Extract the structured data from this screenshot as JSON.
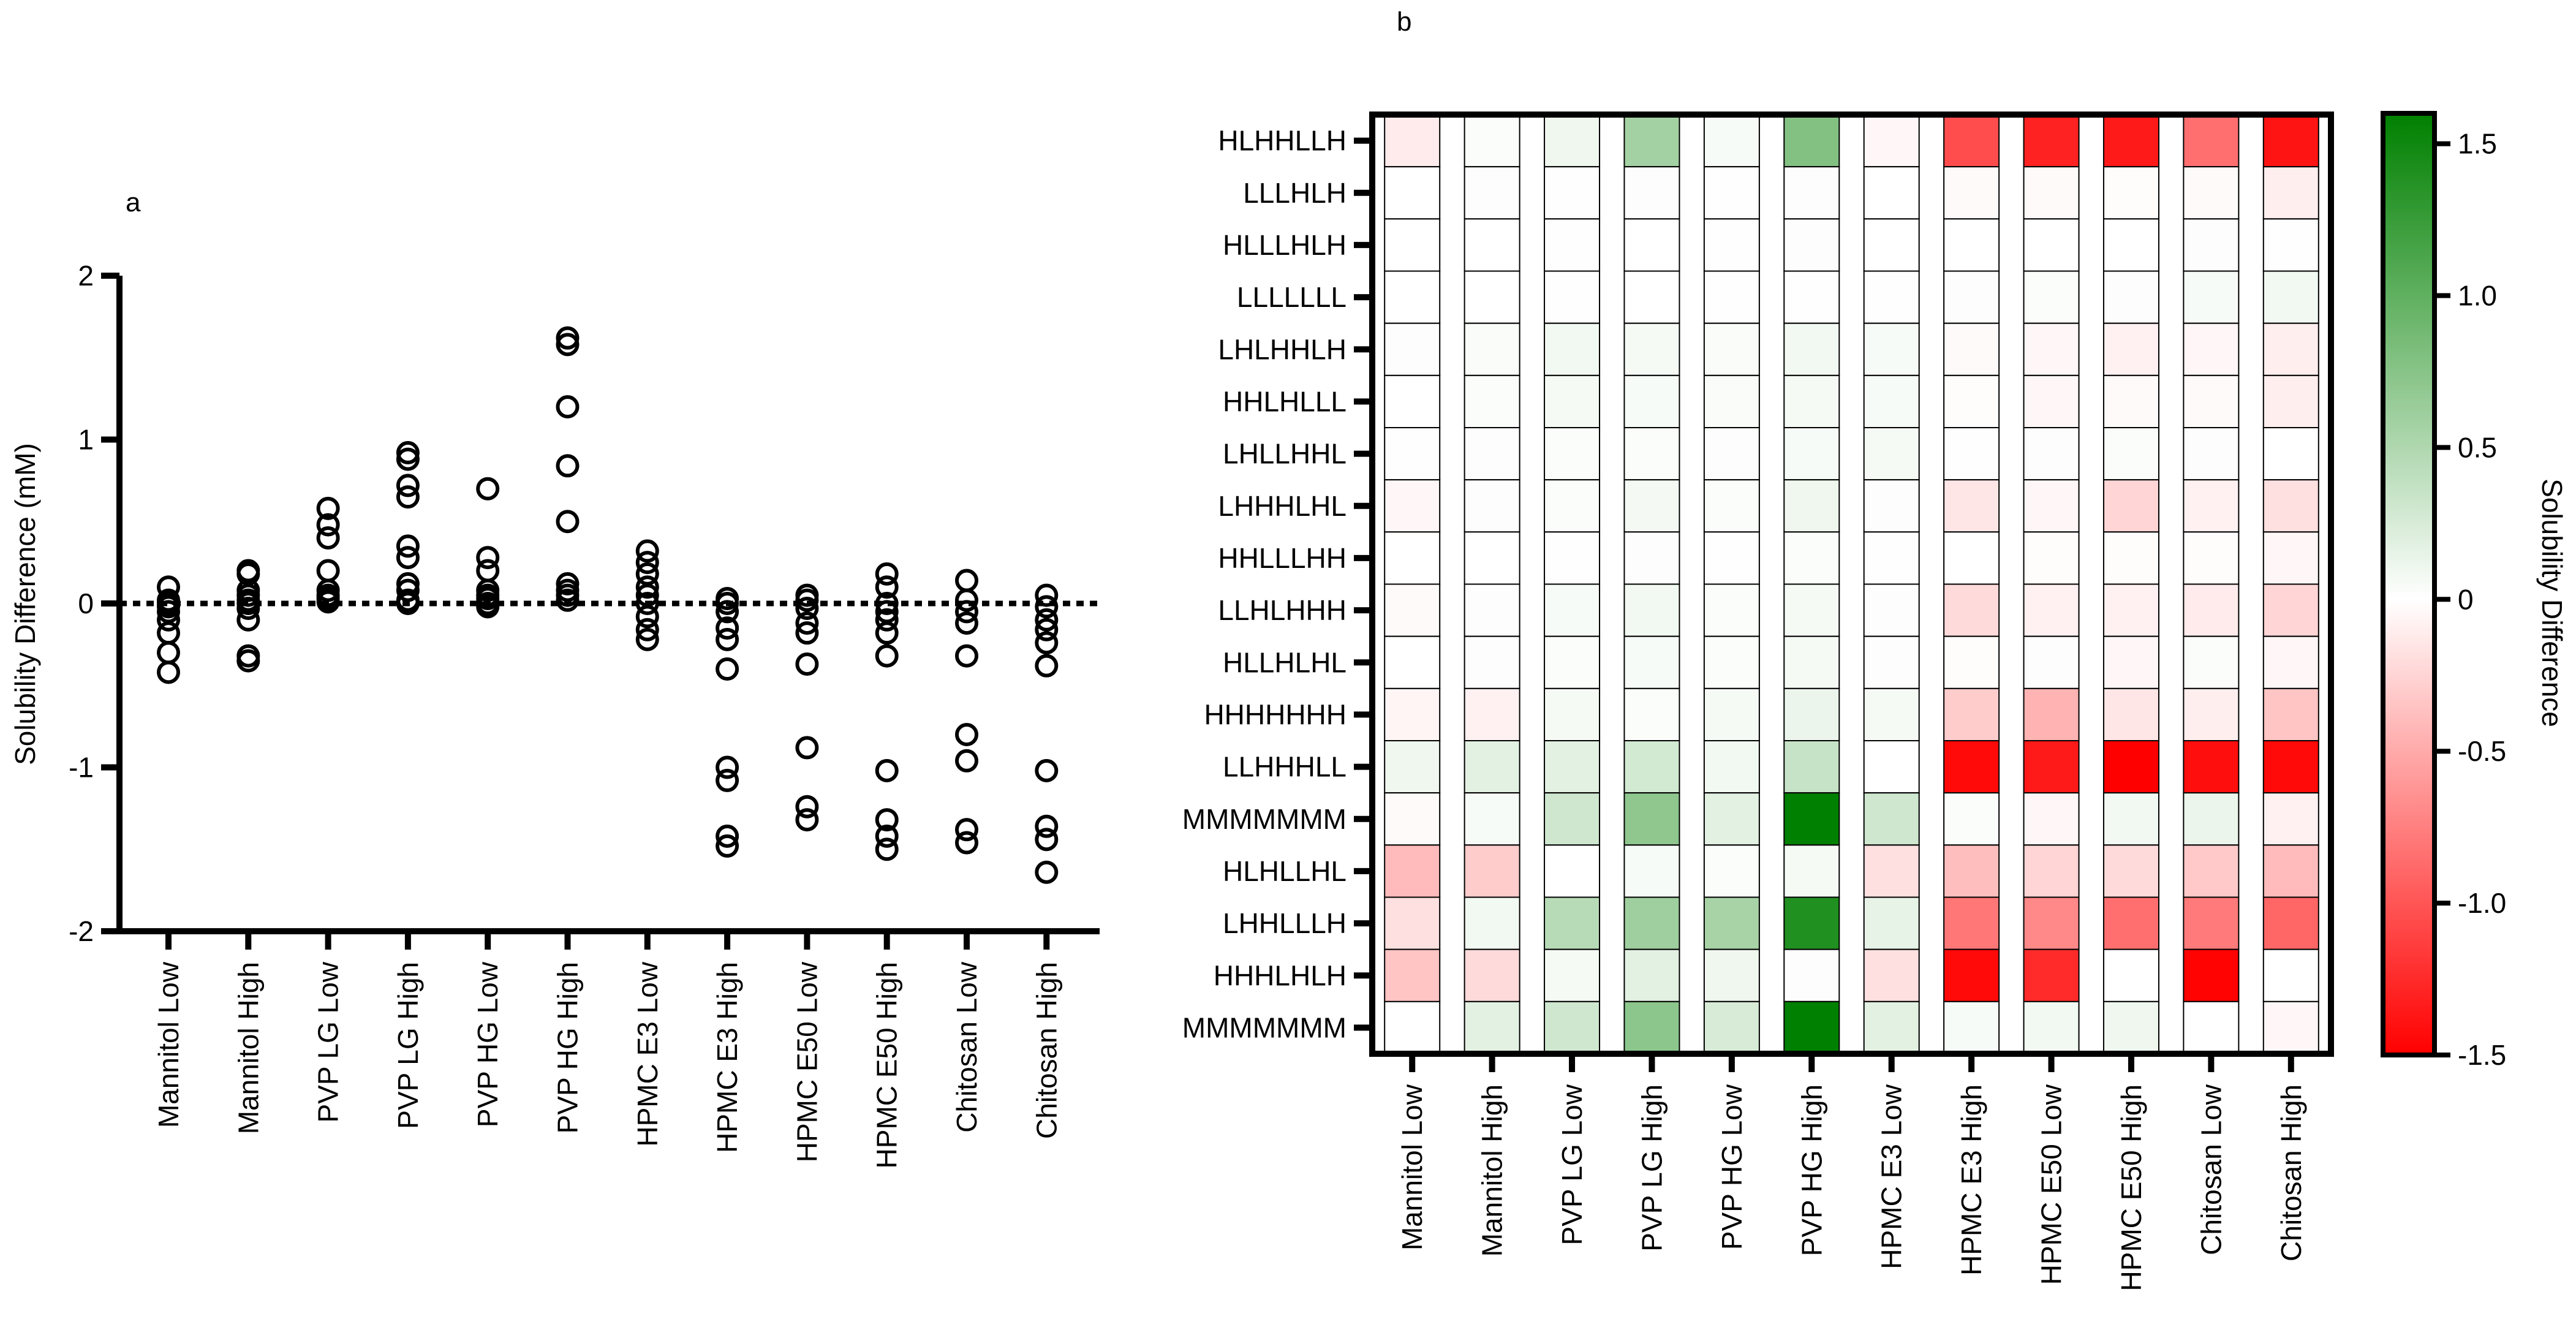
{
  "chart_data": [
    {
      "panel": "a",
      "type": "scatter",
      "title": "",
      "xlabel": "",
      "ylabel": "Solubility Difference (mM)",
      "ylim": [
        -2,
        2
      ],
      "yticks": [
        "-2",
        "-1",
        "0",
        "1",
        "2"
      ],
      "reference_line": 0,
      "categories": [
        "Mannitol Low",
        "Mannitol High",
        "PVP LG Low",
        "PVP LG High",
        "PVP HG Low",
        "PVP HG High",
        "HPMC E3 Low",
        "HPMC E3 High",
        "HPMC E50 Low",
        "HPMC E50 High",
        "Chitosan Low",
        "Chitosan High"
      ],
      "points": [
        [
          0.1,
          0.02,
          0.0,
          -0.02,
          -0.05,
          -0.1,
          -0.18,
          -0.3,
          -0.42
        ],
        [
          0.2,
          0.18,
          0.08,
          0.05,
          0.02,
          0.0,
          -0.03,
          -0.1,
          -0.32,
          -0.35
        ],
        [
          0.58,
          0.48,
          0.4,
          0.2,
          0.08,
          0.05,
          0.03,
          0.01
        ],
        [
          0.92,
          0.88,
          0.72,
          0.65,
          0.35,
          0.28,
          0.12,
          0.08,
          0.02,
          0.0
        ],
        [
          0.7,
          0.28,
          0.2,
          0.08,
          0.05,
          0.03,
          0.0,
          -0.02
        ],
        [
          1.62,
          1.58,
          1.2,
          0.84,
          0.5,
          0.12,
          0.08,
          0.05,
          0.02
        ],
        [
          0.32,
          0.25,
          0.18,
          0.1,
          0.05,
          0.0,
          -0.08,
          -0.16,
          -0.22
        ],
        [
          0.03,
          0.0,
          -0.05,
          -0.15,
          -0.22,
          -0.4,
          -1.0,
          -1.08,
          -1.42,
          -1.48
        ],
        [
          0.05,
          0.02,
          -0.03,
          -0.12,
          -0.18,
          -0.37,
          -0.88,
          -1.24,
          -1.32
        ],
        [
          0.18,
          0.1,
          0.0,
          -0.05,
          -0.1,
          -0.18,
          -0.32,
          -1.02,
          -1.32,
          -1.42,
          -1.5
        ],
        [
          0.14,
          0.02,
          -0.05,
          -0.12,
          -0.32,
          -0.8,
          -0.96,
          -1.38,
          -1.46
        ],
        [
          0.05,
          -0.02,
          -0.1,
          -0.16,
          -0.24,
          -0.38,
          -1.02,
          -1.36,
          -1.44,
          -1.64
        ]
      ]
    },
    {
      "panel": "b",
      "type": "heatmap",
      "title": "",
      "colorbar_label": "Solubility Difference",
      "colorbar_range": [
        -1.5,
        1.6
      ],
      "colorbar_ticks": [
        "1.5",
        "1.0",
        "0.5",
        "0",
        "-0.5",
        "-1.0",
        "-1.5"
      ],
      "colors": {
        "positive": "#008000",
        "zero": "#ffffff",
        "negative": "#ff0000"
      },
      "columns": [
        "Mannitol Low",
        "Mannitol High",
        "PVP LG Low",
        "PVP LG High",
        "PVP HG Low",
        "PVP HG High",
        "HPMC E3 Low",
        "HPMC E3 High",
        "HPMC E50 Low",
        "HPMC E50 High",
        "Chitosan Low",
        "Chitosan High"
      ],
      "rows": [
        "HLHHLLH",
        "LLLHLH",
        "HLLLHLH",
        "LLLLLLL",
        "LHLHHLH",
        "HHLHLLL",
        "LHLLHHL",
        "LHHHLHL",
        "HHLLLHH",
        "LLHLHHH",
        "HLLHLHL",
        "HHHHHHH",
        "LLHHHLL",
        "MMMMMMM",
        "HLHLLHL",
        "LHHLLLH",
        "HHHLHLH",
        "MMMMMMM"
      ],
      "values": [
        [
          -0.12,
          0.03,
          0.1,
          0.58,
          0.05,
          0.78,
          -0.05,
          -1.05,
          -1.3,
          -1.35,
          -0.85,
          -1.38
        ],
        [
          0.0,
          0.02,
          0.01,
          0.02,
          0.01,
          0.02,
          0.0,
          -0.03,
          -0.03,
          -0.02,
          -0.03,
          -0.1
        ],
        [
          0.0,
          0.0,
          0.01,
          0.0,
          0.01,
          0.02,
          0.0,
          0.0,
          0.0,
          0.0,
          0.02,
          0.01
        ],
        [
          0.0,
          0.0,
          0.01,
          0.0,
          0.01,
          0.01,
          0.01,
          0.02,
          0.03,
          0.02,
          0.05,
          0.08
        ],
        [
          0.02,
          0.04,
          0.08,
          0.06,
          0.04,
          0.08,
          0.05,
          -0.03,
          -0.05,
          -0.08,
          -0.05,
          -0.1
        ],
        [
          0.0,
          0.03,
          0.06,
          0.05,
          0.04,
          0.06,
          0.05,
          -0.02,
          -0.05,
          -0.03,
          -0.03,
          -0.1
        ],
        [
          0.01,
          0.02,
          0.03,
          0.03,
          0.02,
          0.05,
          0.06,
          0.01,
          0.02,
          0.03,
          0.02,
          0.0
        ],
        [
          -0.05,
          0.02,
          0.03,
          0.07,
          0.03,
          0.1,
          0.02,
          -0.15,
          -0.05,
          -0.25,
          -0.08,
          -0.18
        ],
        [
          0.0,
          0.0,
          0.01,
          0.02,
          0.01,
          0.03,
          0.01,
          0.0,
          -0.02,
          -0.02,
          -0.02,
          -0.05
        ],
        [
          -0.03,
          0.02,
          0.05,
          0.08,
          0.03,
          0.06,
          0.02,
          -0.22,
          -0.08,
          -0.08,
          -0.12,
          -0.25
        ],
        [
          0.0,
          0.02,
          0.03,
          0.05,
          0.03,
          0.06,
          0.02,
          -0.02,
          0.02,
          -0.05,
          0.03,
          -0.05
        ],
        [
          -0.06,
          -0.08,
          0.06,
          0.03,
          0.06,
          0.12,
          0.06,
          -0.3,
          -0.45,
          -0.15,
          -0.1,
          -0.35
        ],
        [
          0.1,
          0.18,
          0.18,
          0.28,
          0.08,
          0.35,
          0.0,
          -1.45,
          -1.35,
          -1.5,
          -1.42,
          -1.45
        ],
        [
          -0.03,
          0.05,
          0.3,
          0.7,
          0.18,
          1.6,
          0.3,
          0.03,
          -0.05,
          0.08,
          0.12,
          -0.08
        ],
        [
          -0.4,
          -0.3,
          0.0,
          0.05,
          0.03,
          0.06,
          -0.18,
          -0.38,
          -0.25,
          -0.22,
          -0.32,
          -0.4
        ],
        [
          -0.18,
          0.08,
          0.45,
          0.6,
          0.55,
          1.4,
          0.15,
          -0.8,
          -0.7,
          -0.85,
          -0.78,
          -0.9
        ],
        [
          -0.35,
          -0.22,
          0.06,
          0.18,
          0.1,
          0.02,
          -0.18,
          -1.45,
          -1.25,
          0.0,
          -1.48,
          0.0
        ],
        [
          0.0,
          0.18,
          0.3,
          0.72,
          0.25,
          1.62,
          0.18,
          0.05,
          0.08,
          0.1,
          0.0,
          -0.05
        ]
      ]
    }
  ],
  "labels": {
    "panel_a": "a",
    "panel_b": "b"
  }
}
